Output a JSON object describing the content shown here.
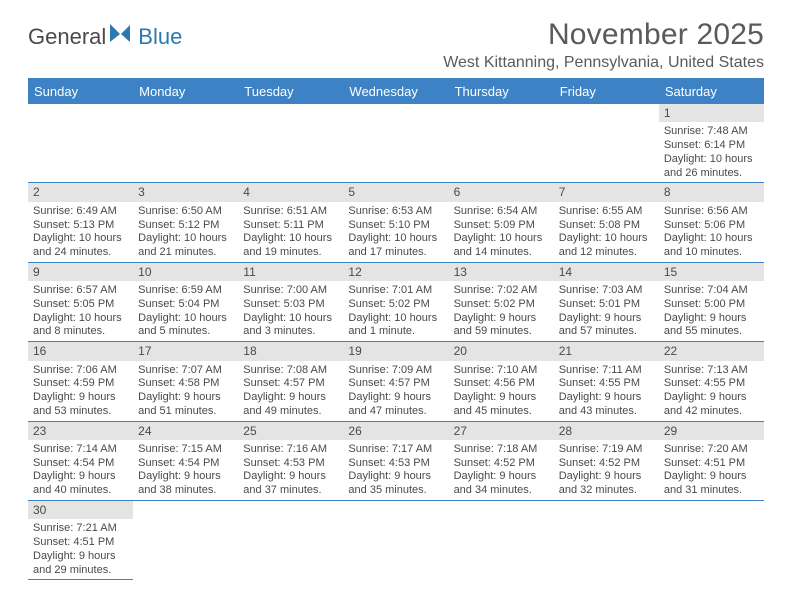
{
  "logo": {
    "text_general": "General",
    "text_blue": "Blue"
  },
  "header": {
    "month_title": "November 2025",
    "location": "West Kittanning, Pennsylvania, United States"
  },
  "styling": {
    "header_bg": "#3d82c4",
    "header_text": "#ffffff",
    "daynum_bg": "#e4e4e4",
    "text_color": "#4a4a4a",
    "row_separator": "#3d82c4",
    "page_bg": "#ffffff",
    "title_fontsize": 30,
    "location_fontsize": 16,
    "dayhead_fontsize": 13,
    "daynum_fontsize": 12,
    "detail_fontsize": 11,
    "columns": 7,
    "rows": 6
  },
  "day_headers": [
    "Sunday",
    "Monday",
    "Tuesday",
    "Wednesday",
    "Thursday",
    "Friday",
    "Saturday"
  ],
  "weeks": [
    [
      {
        "blank": true
      },
      {
        "blank": true
      },
      {
        "blank": true
      },
      {
        "blank": true
      },
      {
        "blank": true
      },
      {
        "blank": true
      },
      {
        "num": "1",
        "sunrise": "Sunrise: 7:48 AM",
        "sunset": "Sunset: 6:14 PM",
        "daylight": "Daylight: 10 hours and 26 minutes."
      }
    ],
    [
      {
        "num": "2",
        "sunrise": "Sunrise: 6:49 AM",
        "sunset": "Sunset: 5:13 PM",
        "daylight": "Daylight: 10 hours and 24 minutes."
      },
      {
        "num": "3",
        "sunrise": "Sunrise: 6:50 AM",
        "sunset": "Sunset: 5:12 PM",
        "daylight": "Daylight: 10 hours and 21 minutes."
      },
      {
        "num": "4",
        "sunrise": "Sunrise: 6:51 AM",
        "sunset": "Sunset: 5:11 PM",
        "daylight": "Daylight: 10 hours and 19 minutes."
      },
      {
        "num": "5",
        "sunrise": "Sunrise: 6:53 AM",
        "sunset": "Sunset: 5:10 PM",
        "daylight": "Daylight: 10 hours and 17 minutes."
      },
      {
        "num": "6",
        "sunrise": "Sunrise: 6:54 AM",
        "sunset": "Sunset: 5:09 PM",
        "daylight": "Daylight: 10 hours and 14 minutes."
      },
      {
        "num": "7",
        "sunrise": "Sunrise: 6:55 AM",
        "sunset": "Sunset: 5:08 PM",
        "daylight": "Daylight: 10 hours and 12 minutes."
      },
      {
        "num": "8",
        "sunrise": "Sunrise: 6:56 AM",
        "sunset": "Sunset: 5:06 PM",
        "daylight": "Daylight: 10 hours and 10 minutes."
      }
    ],
    [
      {
        "num": "9",
        "sunrise": "Sunrise: 6:57 AM",
        "sunset": "Sunset: 5:05 PM",
        "daylight": "Daylight: 10 hours and 8 minutes."
      },
      {
        "num": "10",
        "sunrise": "Sunrise: 6:59 AM",
        "sunset": "Sunset: 5:04 PM",
        "daylight": "Daylight: 10 hours and 5 minutes."
      },
      {
        "num": "11",
        "sunrise": "Sunrise: 7:00 AM",
        "sunset": "Sunset: 5:03 PM",
        "daylight": "Daylight: 10 hours and 3 minutes."
      },
      {
        "num": "12",
        "sunrise": "Sunrise: 7:01 AM",
        "sunset": "Sunset: 5:02 PM",
        "daylight": "Daylight: 10 hours and 1 minute."
      },
      {
        "num": "13",
        "sunrise": "Sunrise: 7:02 AM",
        "sunset": "Sunset: 5:02 PM",
        "daylight": "Daylight: 9 hours and 59 minutes."
      },
      {
        "num": "14",
        "sunrise": "Sunrise: 7:03 AM",
        "sunset": "Sunset: 5:01 PM",
        "daylight": "Daylight: 9 hours and 57 minutes."
      },
      {
        "num": "15",
        "sunrise": "Sunrise: 7:04 AM",
        "sunset": "Sunset: 5:00 PM",
        "daylight": "Daylight: 9 hours and 55 minutes."
      }
    ],
    [
      {
        "num": "16",
        "sunrise": "Sunrise: 7:06 AM",
        "sunset": "Sunset: 4:59 PM",
        "daylight": "Daylight: 9 hours and 53 minutes."
      },
      {
        "num": "17",
        "sunrise": "Sunrise: 7:07 AM",
        "sunset": "Sunset: 4:58 PM",
        "daylight": "Daylight: 9 hours and 51 minutes."
      },
      {
        "num": "18",
        "sunrise": "Sunrise: 7:08 AM",
        "sunset": "Sunset: 4:57 PM",
        "daylight": "Daylight: 9 hours and 49 minutes."
      },
      {
        "num": "19",
        "sunrise": "Sunrise: 7:09 AM",
        "sunset": "Sunset: 4:57 PM",
        "daylight": "Daylight: 9 hours and 47 minutes."
      },
      {
        "num": "20",
        "sunrise": "Sunrise: 7:10 AM",
        "sunset": "Sunset: 4:56 PM",
        "daylight": "Daylight: 9 hours and 45 minutes."
      },
      {
        "num": "21",
        "sunrise": "Sunrise: 7:11 AM",
        "sunset": "Sunset: 4:55 PM",
        "daylight": "Daylight: 9 hours and 43 minutes."
      },
      {
        "num": "22",
        "sunrise": "Sunrise: 7:13 AM",
        "sunset": "Sunset: 4:55 PM",
        "daylight": "Daylight: 9 hours and 42 minutes."
      }
    ],
    [
      {
        "num": "23",
        "sunrise": "Sunrise: 7:14 AM",
        "sunset": "Sunset: 4:54 PM",
        "daylight": "Daylight: 9 hours and 40 minutes."
      },
      {
        "num": "24",
        "sunrise": "Sunrise: 7:15 AM",
        "sunset": "Sunset: 4:54 PM",
        "daylight": "Daylight: 9 hours and 38 minutes."
      },
      {
        "num": "25",
        "sunrise": "Sunrise: 7:16 AM",
        "sunset": "Sunset: 4:53 PM",
        "daylight": "Daylight: 9 hours and 37 minutes."
      },
      {
        "num": "26",
        "sunrise": "Sunrise: 7:17 AM",
        "sunset": "Sunset: 4:53 PM",
        "daylight": "Daylight: 9 hours and 35 minutes."
      },
      {
        "num": "27",
        "sunrise": "Sunrise: 7:18 AM",
        "sunset": "Sunset: 4:52 PM",
        "daylight": "Daylight: 9 hours and 34 minutes."
      },
      {
        "num": "28",
        "sunrise": "Sunrise: 7:19 AM",
        "sunset": "Sunset: 4:52 PM",
        "daylight": "Daylight: 9 hours and 32 minutes."
      },
      {
        "num": "29",
        "sunrise": "Sunrise: 7:20 AM",
        "sunset": "Sunset: 4:51 PM",
        "daylight": "Daylight: 9 hours and 31 minutes."
      }
    ],
    [
      {
        "num": "30",
        "sunrise": "Sunrise: 7:21 AM",
        "sunset": "Sunset: 4:51 PM",
        "daylight": "Daylight: 9 hours and 29 minutes."
      },
      {
        "blank": true
      },
      {
        "blank": true
      },
      {
        "blank": true
      },
      {
        "blank": true
      },
      {
        "blank": true
      },
      {
        "blank": true
      }
    ]
  ]
}
